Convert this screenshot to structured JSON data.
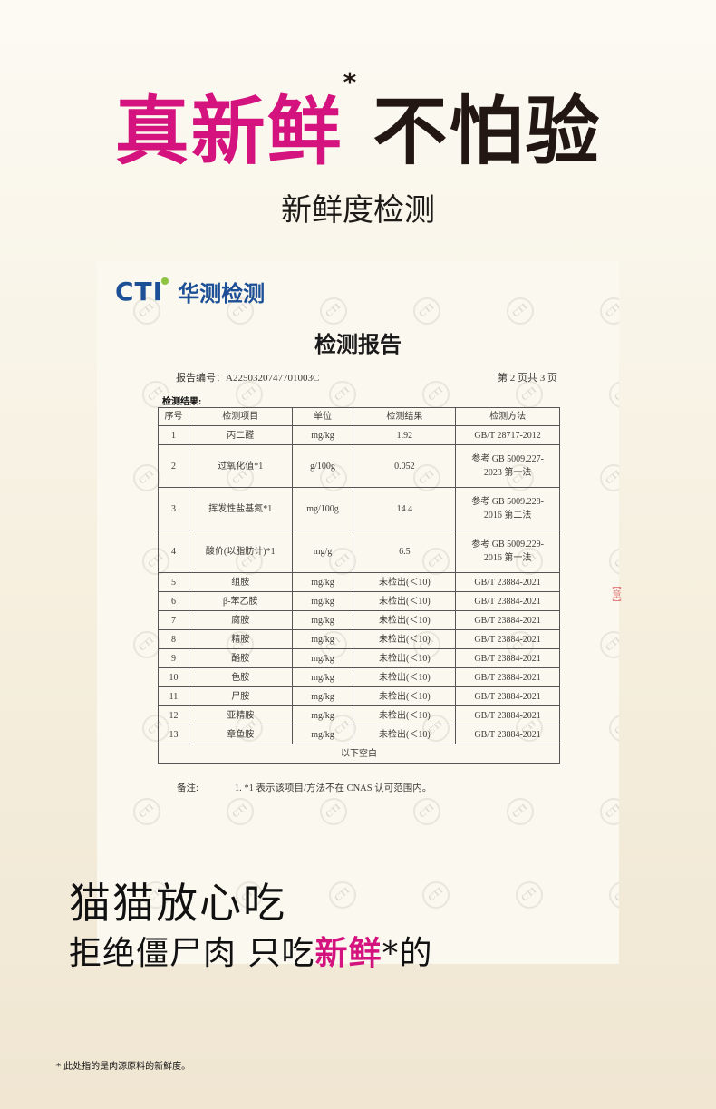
{
  "headline": {
    "pink": "真新鲜",
    "star": "*",
    "dark": "不怕验"
  },
  "subtitle": "新鲜度检测",
  "report": {
    "logo_en": "CTI",
    "logo_cn": "华测检测",
    "title": "检测报告",
    "report_no": "报告编号：A2250320747701003C",
    "page": "第 2 页共 3 页",
    "results_label": "检测结果:",
    "headers": [
      "序号",
      "检测项目",
      "单位",
      "检测结果",
      "检测方法"
    ],
    "rows": [
      [
        "1",
        "丙二醛",
        "mg/kg",
        "1.92",
        "GB/T 28717-2012"
      ],
      [
        "2",
        "过氧化值*1",
        "g/100g",
        "0.052",
        "参考 GB 5009.227-2023 第一法"
      ],
      [
        "3",
        "挥发性盐基氮*1",
        "mg/100g",
        "14.4",
        "参考 GB 5009.228-2016 第二法"
      ],
      [
        "4",
        "酸价(以脂肪计)*1",
        "mg/g",
        "6.5",
        "参考 GB 5009.229-2016 第一法"
      ],
      [
        "5",
        "组胺",
        "mg/kg",
        "未检出(＜10)",
        "GB/T 23884-2021"
      ],
      [
        "6",
        "β-苯乙胺",
        "mg/kg",
        "未检出(＜10)",
        "GB/T 23884-2021"
      ],
      [
        "7",
        "腐胺",
        "mg/kg",
        "未检出(＜10)",
        "GB/T 23884-2021"
      ],
      [
        "8",
        "精胺",
        "mg/kg",
        "未检出(＜10)",
        "GB/T 23884-2021"
      ],
      [
        "9",
        "酪胺",
        "mg/kg",
        "未检出(＜10)",
        "GB/T 23884-2021"
      ],
      [
        "10",
        "色胺",
        "mg/kg",
        "未检出(＜10)",
        "GB/T 23884-2021"
      ],
      [
        "11",
        "尸胺",
        "mg/kg",
        "未检出(＜10)",
        "GB/T 23884-2021"
      ],
      [
        "12",
        "亚精胺",
        "mg/kg",
        "未检出(＜10)",
        "GB/T 23884-2021"
      ],
      [
        "13",
        "章鱼胺",
        "mg/kg",
        "未检出(＜10)",
        "GB/T 23884-2021"
      ]
    ],
    "blank_below": "以下空白",
    "note_label": "备注:",
    "note_text": "1. *1 表示该项目/方法不在 CNAS 认可范围内。"
  },
  "tagline1": "猫猫放心吃",
  "tagline2": {
    "pre": "拒绝僵尸肉 只吃",
    "pink": "新鲜",
    "post": "*的"
  },
  "footnote": "* 此处指的是肉源原料的新鲜度。",
  "colors": {
    "accent": "#d4137f",
    "brand": "#1d4f96"
  }
}
